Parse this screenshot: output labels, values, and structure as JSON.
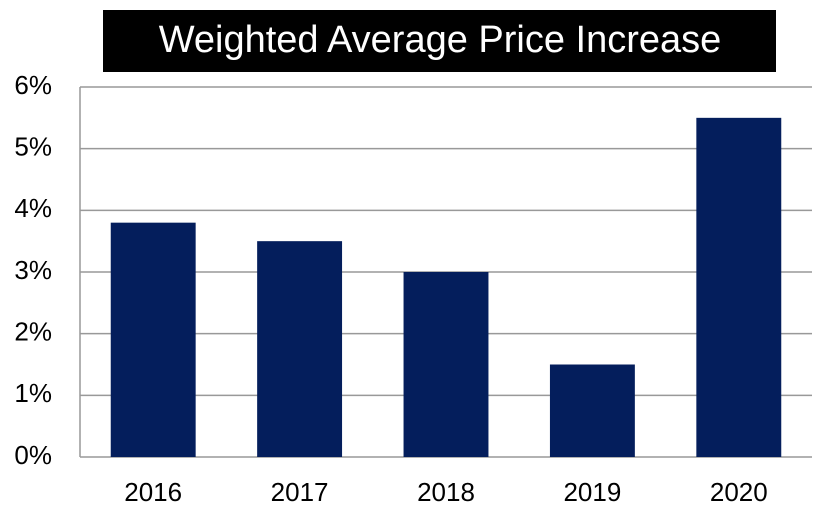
{
  "chart_data": {
    "type": "bar",
    "title": "Weighted Average Price Increase",
    "categories": [
      "2016",
      "2017",
      "2018",
      "2019",
      "2020"
    ],
    "values": [
      3.8,
      3.5,
      3.0,
      1.5,
      5.5
    ],
    "color": "#041e5c",
    "ylim": [
      0,
      6
    ],
    "yticks": [
      {
        "value": 0,
        "label": "0%"
      },
      {
        "value": 1,
        "label": "1%"
      },
      {
        "value": 2,
        "label": "2%"
      },
      {
        "value": 3,
        "label": "3%"
      },
      {
        "value": 4,
        "label": "4%"
      },
      {
        "value": 5,
        "label": "5%"
      },
      {
        "value": 6,
        "label": "6%"
      }
    ],
    "grid": true
  }
}
